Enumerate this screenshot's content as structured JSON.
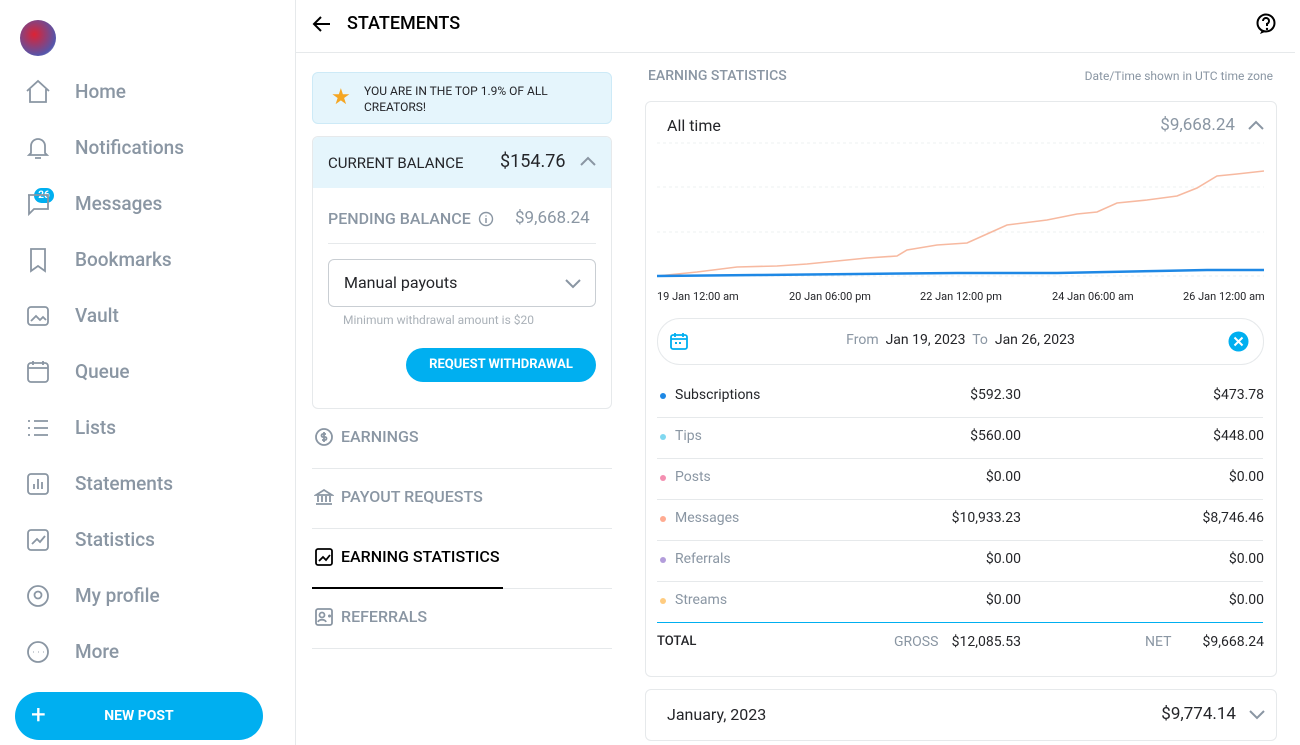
{
  "sidebar": {
    "badge": "26",
    "nav": [
      "Home",
      "Notifications",
      "Messages",
      "Bookmarks",
      "Vault",
      "Queue",
      "Lists",
      "Statements",
      "Statistics",
      "My profile",
      "More"
    ],
    "new_post": "NEW POST"
  },
  "header": {
    "title": "STATEMENTS"
  },
  "banner": "YOU ARE IN THE TOP 1.9% OF ALL CREATORS!",
  "balance": {
    "current_label": "CURRENT BALANCE",
    "current_value": "$154.76",
    "pending_label": "PENDING BALANCE",
    "pending_value": "$9,668.24",
    "payout_method": "Manual payouts",
    "min_note": "Minimum withdrawal amount is $20",
    "withdraw_button": "REQUEST WITHDRAWAL"
  },
  "tabs": [
    "EARNINGS",
    "PAYOUT REQUESTS",
    "EARNING STATISTICS",
    "REFERRALS"
  ],
  "stats": {
    "title": "EARNING STATISTICS",
    "timezone_note": "Date/Time shown in UTC time zone",
    "period": "All time",
    "period_total": "$9,668.24",
    "x_labels": [
      "19 Jan 12:00 am",
      "20 Jan 06:00 pm",
      "22 Jan 12:00 pm",
      "24 Jan 06:00 am",
      "26 Jan 12:00 am"
    ],
    "from_label": "From",
    "from_date": "Jan 19, 2023",
    "to_label": "To",
    "to_date": "Jan 26, 2023",
    "rows": [
      {
        "name": "Subscriptions",
        "gross": "$592.30",
        "net": "$473.78",
        "color": "#1e88e5"
      },
      {
        "name": "Tips",
        "gross": "$560.00",
        "net": "$448.00",
        "color": "#80d8f0"
      },
      {
        "name": "Posts",
        "gross": "$0.00",
        "net": "$0.00",
        "color": "#f48fb1"
      },
      {
        "name": "Messages",
        "gross": "$10,933.23",
        "net": "$8,746.46",
        "color": "#ffab91"
      },
      {
        "name": "Referrals",
        "gross": "$0.00",
        "net": "$0.00",
        "color": "#b39ddb"
      },
      {
        "name": "Streams",
        "gross": "$0.00",
        "net": "$0.00",
        "color": "#ffcc80"
      }
    ],
    "total_label": "TOTAL",
    "gross_label": "GROSS",
    "gross": "$12,085.53",
    "net_label": "NET",
    "net": "$9,668.24"
  },
  "month": {
    "label": "January, 2023",
    "total": "$9,774.14"
  }
}
